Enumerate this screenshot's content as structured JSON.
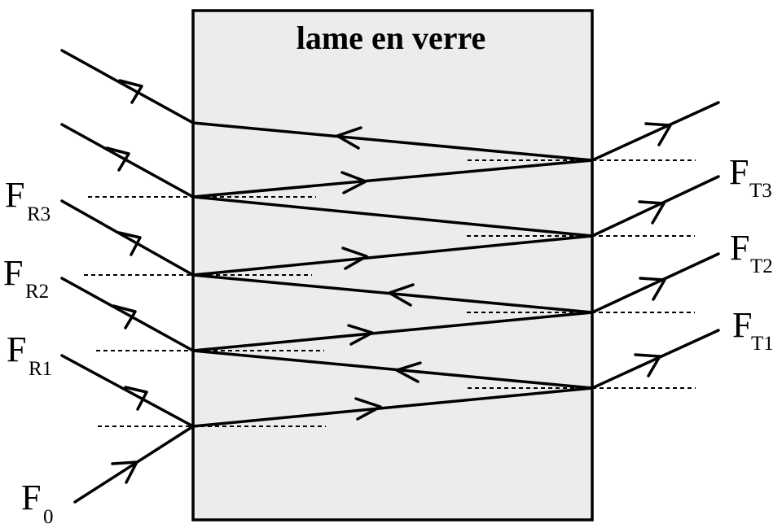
{
  "slab": {
    "title": "lame en verre",
    "fill_color": "#ececec",
    "stroke_color": "#000000"
  },
  "labels": {
    "incident": {
      "main": "F",
      "sub": "0"
    },
    "reflected": [
      {
        "main": "F",
        "sub": "R1"
      },
      {
        "main": "F",
        "sub": "R2"
      },
      {
        "main": "F",
        "sub": "R3"
      }
    ],
    "transmitted": [
      {
        "main": "F",
        "sub": "T1"
      },
      {
        "main": "F",
        "sub": "T2"
      },
      {
        "main": "F",
        "sub": "T3"
      }
    ]
  }
}
